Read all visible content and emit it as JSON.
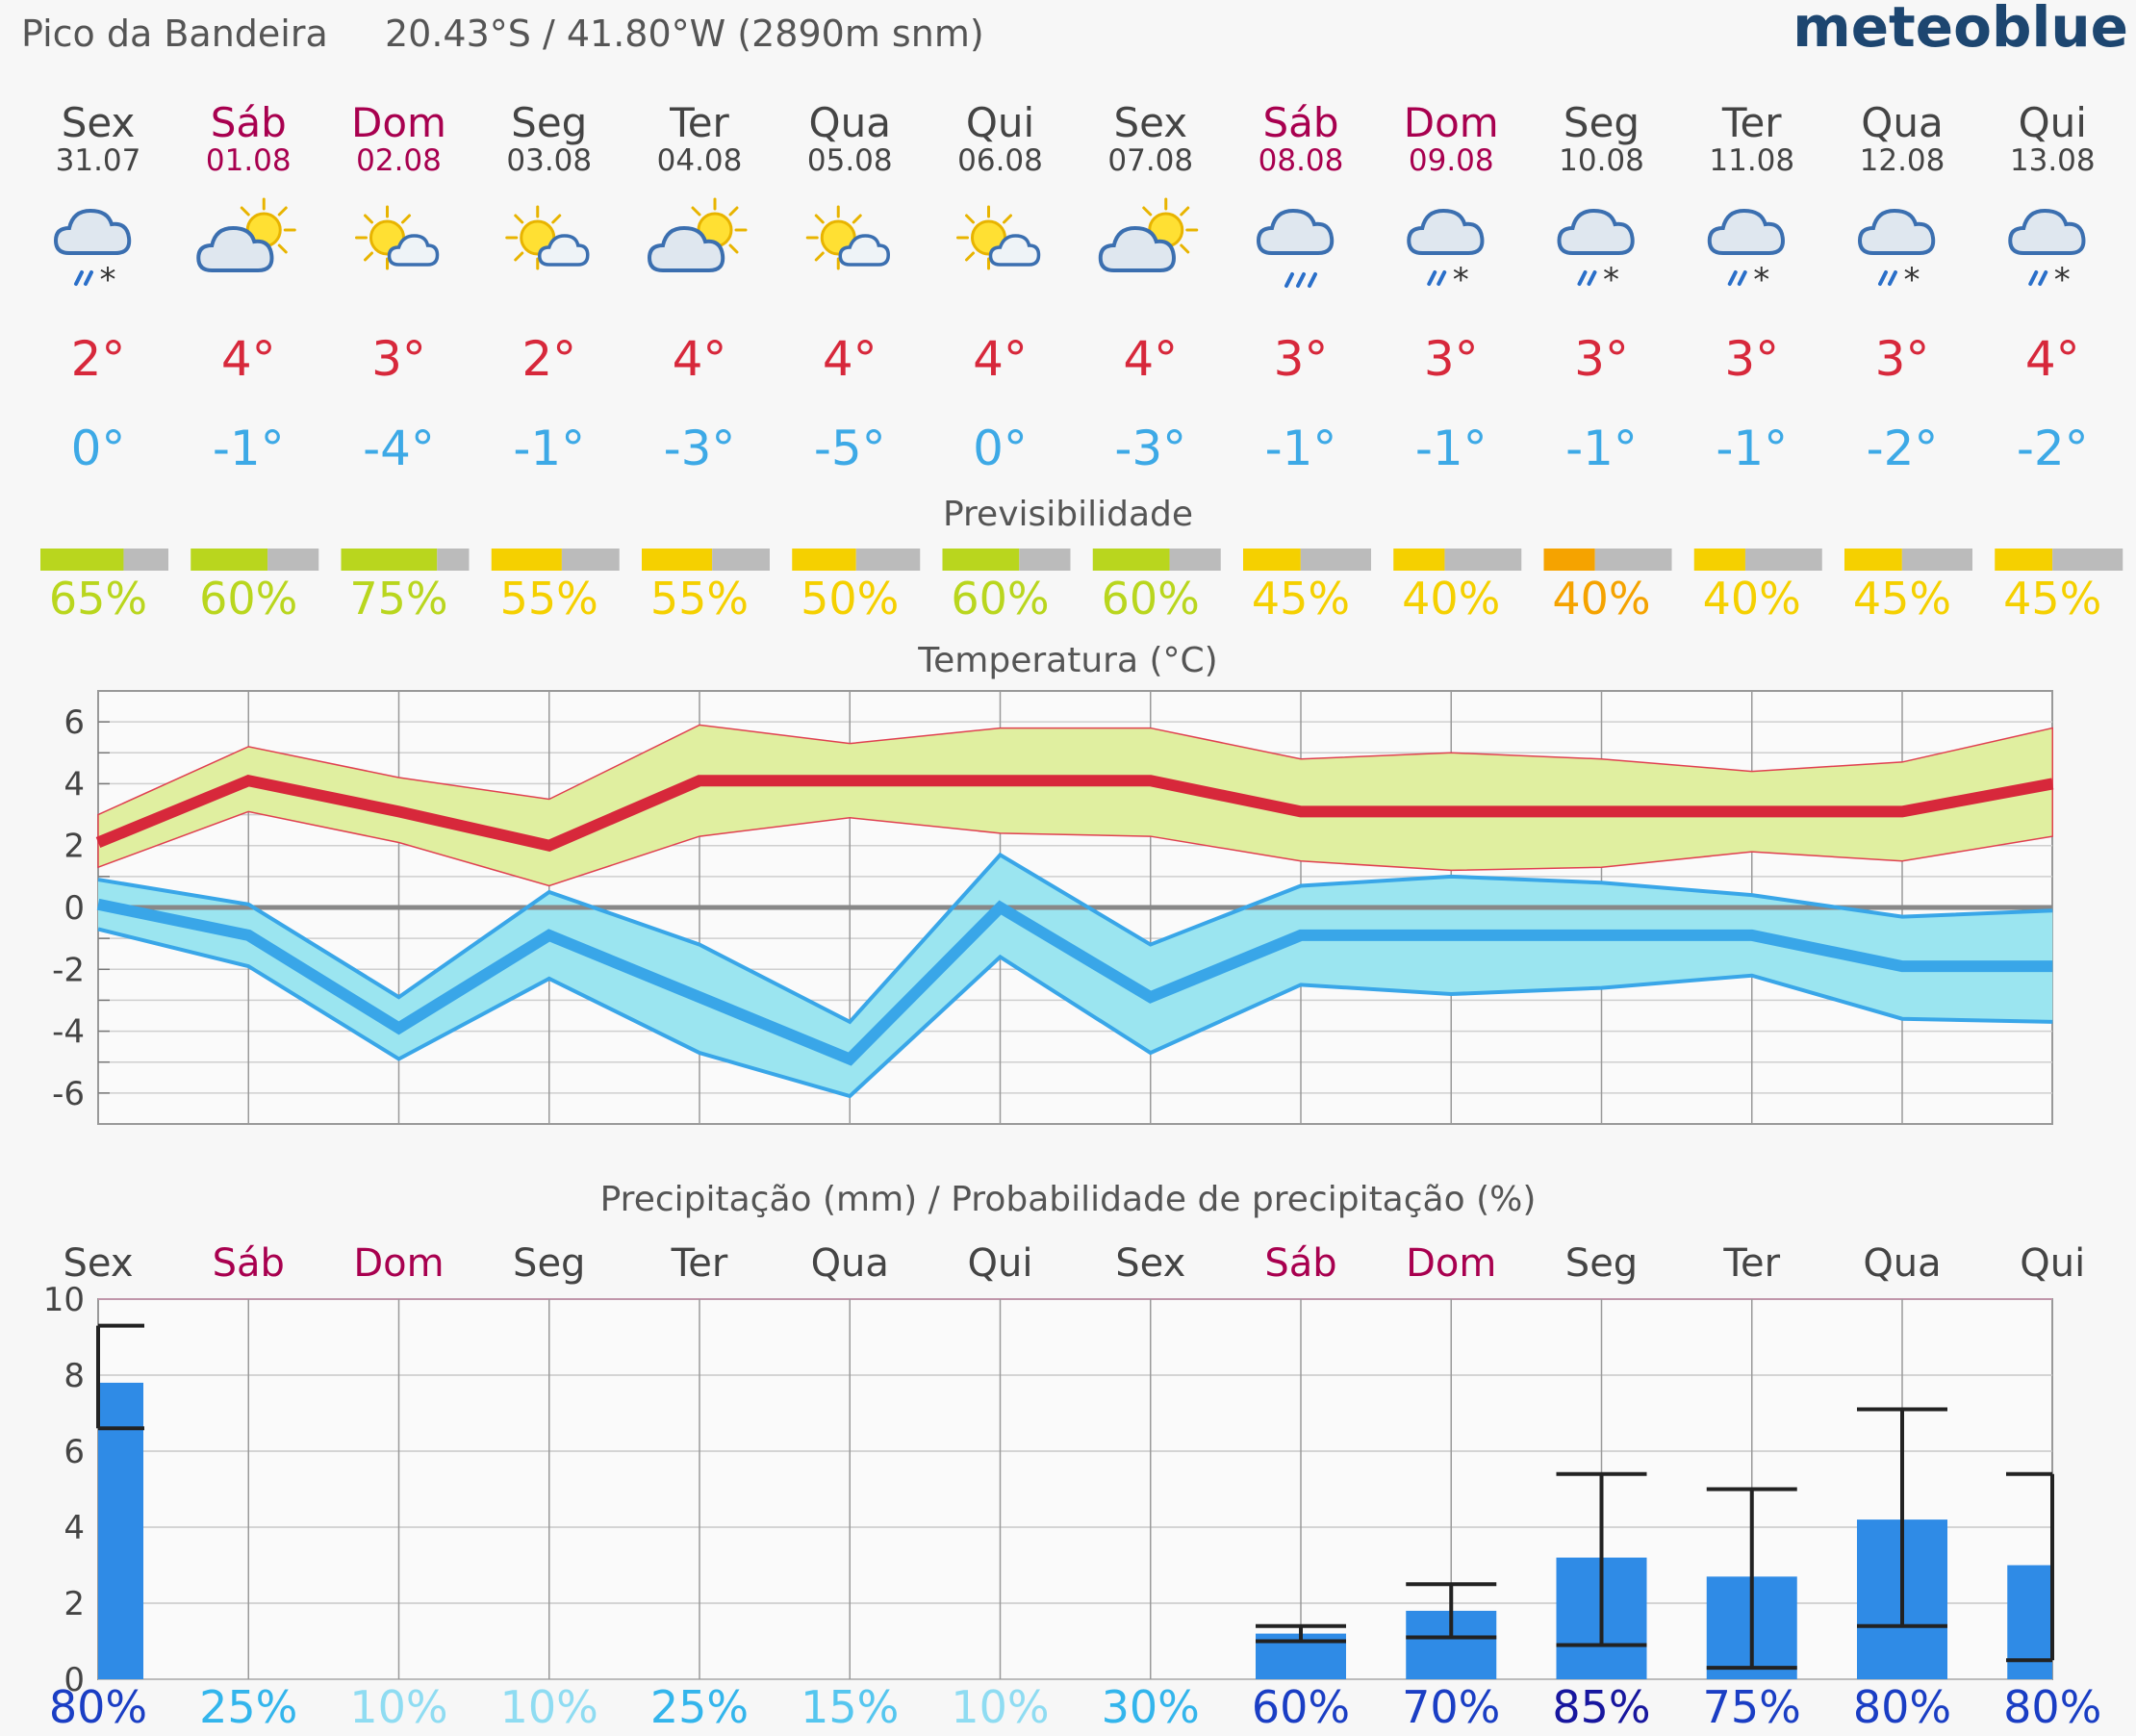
{
  "header": {
    "location": "Pico da Bandeira",
    "coordinates": "20.43°S / 41.80°W (2890m snm)",
    "brand": "meteoblue"
  },
  "colors": {
    "weekday": "#444444",
    "weekend": "#a8004f",
    "temp_max": "#d7283b",
    "temp_min": "#3da9e6",
    "pred_high": "#b9d61e",
    "pred_mid": "#f5d000",
    "pred_low": "#f5a300",
    "pred_rest": "#bbbbbb",
    "max_band": "#e0efa0",
    "min_band": "#9be5f0",
    "min_line": "#39a6e8",
    "precip_bar": "#2f8be6",
    "precip_prob_light": "#8fdcf2",
    "precip_prob_mid": "#33b5ec",
    "precip_prob_dark": "#1a3ec4",
    "precip_prob_darkest": "#17169e",
    "brand": "#1d4670"
  },
  "days": [
    {
      "name": "Sex",
      "date": "31.07",
      "weekend": false,
      "icon": "cloud-rain-snow-icon",
      "tmax": "2°",
      "tmin": "0°",
      "pred": "65%",
      "pred_frac": 0.65,
      "pred_color": "#b9d61e"
    },
    {
      "name": "Sáb",
      "date": "01.08",
      "weekend": true,
      "icon": "sun-cloud-icon",
      "tmax": "4°",
      "tmin": "-1°",
      "pred": "60%",
      "pred_frac": 0.6,
      "pred_color": "#b9d61e"
    },
    {
      "name": "Dom",
      "date": "02.08",
      "weekend": true,
      "icon": "sun-small-cloud-icon",
      "tmax": "3°",
      "tmin": "-4°",
      "pred": "75%",
      "pred_frac": 0.75,
      "pred_color": "#b9d61e"
    },
    {
      "name": "Seg",
      "date": "03.08",
      "weekend": false,
      "icon": "sun-small-cloud-icon",
      "tmax": "2°",
      "tmin": "-1°",
      "pred": "55%",
      "pred_frac": 0.55,
      "pred_color": "#f5d000"
    },
    {
      "name": "Ter",
      "date": "04.08",
      "weekend": false,
      "icon": "sun-cloud-icon",
      "tmax": "4°",
      "tmin": "-3°",
      "pred": "55%",
      "pred_frac": 0.55,
      "pred_color": "#f5d000"
    },
    {
      "name": "Qua",
      "date": "05.08",
      "weekend": false,
      "icon": "sun-small-cloud-icon",
      "tmax": "4°",
      "tmin": "-5°",
      "pred": "50%",
      "pred_frac": 0.5,
      "pred_color": "#f5d000"
    },
    {
      "name": "Qui",
      "date": "06.08",
      "weekend": false,
      "icon": "sun-small-cloud-icon",
      "tmax": "4°",
      "tmin": "0°",
      "pred": "60%",
      "pred_frac": 0.6,
      "pred_color": "#b9d61e"
    },
    {
      "name": "Sex",
      "date": "07.08",
      "weekend": false,
      "icon": "sun-cloud-icon",
      "tmax": "4°",
      "tmin": "-3°",
      "pred": "60%",
      "pred_frac": 0.6,
      "pred_color": "#b9d61e"
    },
    {
      "name": "Sáb",
      "date": "08.08",
      "weekend": true,
      "icon": "cloud-rain-icon",
      "tmax": "3°",
      "tmin": "-1°",
      "pred": "45%",
      "pred_frac": 0.45,
      "pred_color": "#f5d000"
    },
    {
      "name": "Dom",
      "date": "09.08",
      "weekend": true,
      "icon": "cloud-rain-snow-icon",
      "tmax": "3°",
      "tmin": "-1°",
      "pred": "40%",
      "pred_frac": 0.4,
      "pred_color": "#f5d000"
    },
    {
      "name": "Seg",
      "date": "10.08",
      "weekend": false,
      "icon": "cloud-rain-snow-icon",
      "tmax": "3°",
      "tmin": "-1°",
      "pred": "40%",
      "pred_frac": 0.4,
      "pred_color": "#f5a300"
    },
    {
      "name": "Ter",
      "date": "11.08",
      "weekend": false,
      "icon": "cloud-rain-snow-icon",
      "tmax": "3°",
      "tmin": "-1°",
      "pred": "40%",
      "pred_frac": 0.4,
      "pred_color": "#f5d000"
    },
    {
      "name": "Qua",
      "date": "12.08",
      "weekend": false,
      "icon": "cloud-rain-snow-icon",
      "tmax": "3°",
      "tmin": "-2°",
      "pred": "45%",
      "pred_frac": 0.45,
      "pred_color": "#f5d000"
    },
    {
      "name": "Qui",
      "date": "13.08",
      "weekend": false,
      "icon": "cloud-rain-snow-icon",
      "tmax": "4°",
      "tmin": "-2°",
      "pred": "45%",
      "pred_frac": 0.45,
      "pred_color": "#f5d000"
    }
  ],
  "sections": {
    "predictability_title": "Previsibilidade",
    "temperature_title": "Temperatura (°C)",
    "precip_title": "Precipitação (mm) / Probabilidade de precipitação (%)"
  },
  "chart_data": [
    {
      "type": "line",
      "title": "Temperatura (°C)",
      "x": [
        "31.07",
        "01.08",
        "02.08",
        "03.08",
        "04.08",
        "05.08",
        "06.08",
        "07.08",
        "08.08",
        "09.08",
        "10.08",
        "11.08",
        "12.08",
        "13.08"
      ],
      "ylim": [
        -7,
        7
      ],
      "yticks": [
        -6,
        -4,
        -2,
        0,
        2,
        4,
        6
      ],
      "series": [
        {
          "values": [
            2.1,
            4.1,
            3.1,
            2.0,
            4.1,
            4.1,
            4.1,
            4.1,
            3.1,
            3.1,
            3.1,
            3.1,
            3.1,
            4.0
          ]
        },
        {
          "values": [
            3.0,
            5.2,
            4.2,
            3.5,
            5.9,
            5.3,
            5.8,
            5.8,
            4.8,
            5.0,
            4.8,
            4.4,
            4.7,
            5.8
          ]
        },
        {
          "values": [
            1.3,
            3.1,
            2.1,
            0.7,
            2.3,
            2.9,
            2.4,
            2.3,
            1.5,
            1.2,
            1.3,
            1.8,
            1.5,
            2.3
          ]
        },
        {
          "values": [
            0.1,
            -0.9,
            -3.9,
            -0.9,
            -2.9,
            -4.9,
            0.0,
            -2.9,
            -0.9,
            -0.9,
            -0.9,
            -0.9,
            -1.9,
            -1.9
          ]
        },
        {
          "values": [
            0.9,
            0.1,
            -2.9,
            0.5,
            -1.2,
            -3.7,
            1.7,
            -1.2,
            0.7,
            1.0,
            0.8,
            0.4,
            -0.3,
            -0.1
          ]
        },
        {
          "values": [
            -0.7,
            -1.9,
            -4.9,
            -2.3,
            -4.7,
            -6.1,
            -1.6,
            -4.7,
            -2.5,
            -2.8,
            -2.6,
            -2.2,
            -3.6,
            -3.7
          ]
        }
      ],
      "zero_line": 0,
      "grid": true
    },
    {
      "type": "bar",
      "title": "Precipitação (mm) / Probabilidade de precipitação (%)",
      "categories": [
        "Sex",
        "Sáb",
        "Dom",
        "Seg",
        "Ter",
        "Qua",
        "Qui",
        "Sex",
        "Sáb",
        "Dom",
        "Seg",
        "Ter",
        "Qua",
        "Qui"
      ],
      "ylim": [
        0,
        10
      ],
      "yticks": [
        0,
        2,
        4,
        6,
        8,
        10
      ],
      "values": [
        7.8,
        0,
        0,
        0,
        0,
        0,
        0,
        0,
        1.2,
        1.8,
        3.2,
        2.7,
        4.2,
        3.0
      ],
      "error_low": [
        6.6,
        null,
        null,
        null,
        null,
        null,
        null,
        null,
        1.0,
        1.1,
        0.9,
        0.3,
        1.4,
        0.5
      ],
      "error_high": [
        9.3,
        null,
        null,
        null,
        null,
        null,
        null,
        null,
        1.4,
        2.5,
        5.4,
        5.0,
        7.1,
        5.4
      ],
      "probabilities": [
        "80%",
        "25%",
        "10%",
        "10%",
        "25%",
        "15%",
        "10%",
        "30%",
        "60%",
        "70%",
        "85%",
        "75%",
        "80%",
        "80%"
      ],
      "probability_colors": [
        "#1a3ec4",
        "#33b5ec",
        "#8fdcf2",
        "#8fdcf2",
        "#33b5ec",
        "#55c6ef",
        "#8fdcf2",
        "#33b5ec",
        "#1a3ec4",
        "#1a3ec4",
        "#17169e",
        "#1a3ec4",
        "#1a3ec4",
        "#1a3ec4"
      ],
      "grid": true
    }
  ]
}
